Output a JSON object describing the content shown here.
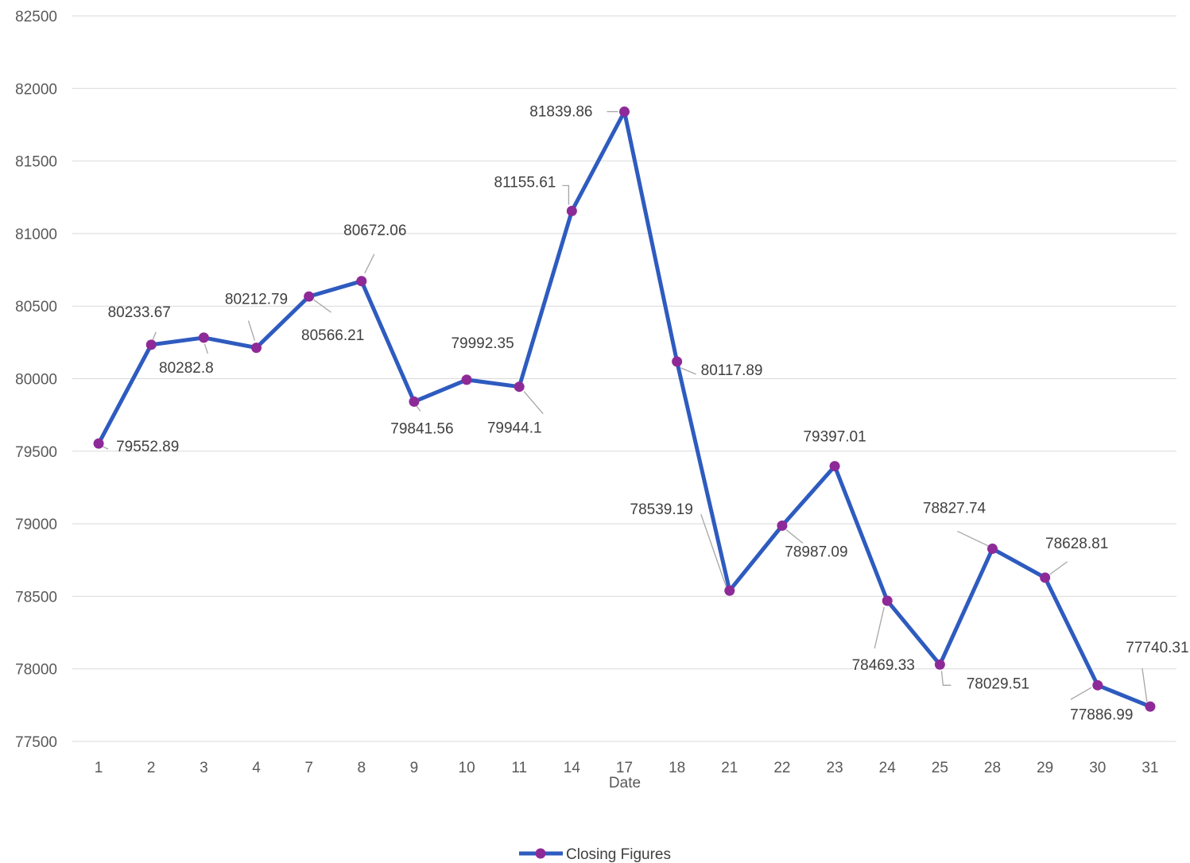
{
  "chart_data": {
    "type": "line",
    "title": "",
    "xlabel": "Date",
    "ylabel": "",
    "ylim": [
      77500,
      82500
    ],
    "ytick_step": 500,
    "grid": true,
    "legend_position": "bottom",
    "categories": [
      "1",
      "2",
      "3",
      "4",
      "7",
      "8",
      "9",
      "10",
      "11",
      "14",
      "17",
      "18",
      "21",
      "22",
      "23",
      "24",
      "25",
      "28",
      "29",
      "30",
      "31"
    ],
    "series": [
      {
        "name": "Closing Figures",
        "line_color": "#2e5bbf",
        "marker_color": "#8e2a98",
        "values": [
          79552.89,
          80233.67,
          80282.8,
          80212.79,
          80566.21,
          80672.06,
          79841.56,
          79992.35,
          79944.1,
          81155.61,
          81839.86,
          80117.89,
          78539.19,
          78987.09,
          79397.01,
          78469.33,
          78029.51,
          78827.74,
          78628.81,
          77886.99,
          77740.31
        ],
        "labels": [
          "79552.89",
          "80233.67",
          "80282.8",
          "80212.79",
          "80566.21",
          "80672.06",
          "79841.56",
          "79992.35",
          "79944.1",
          "81155.61",
          "81839.86",
          "80117.89",
          "78539.19",
          "78987.09",
          "79397.01",
          "78469.33",
          "78029.51",
          "78827.74",
          "78628.81",
          "77886.99",
          "77740.31"
        ]
      }
    ]
  }
}
